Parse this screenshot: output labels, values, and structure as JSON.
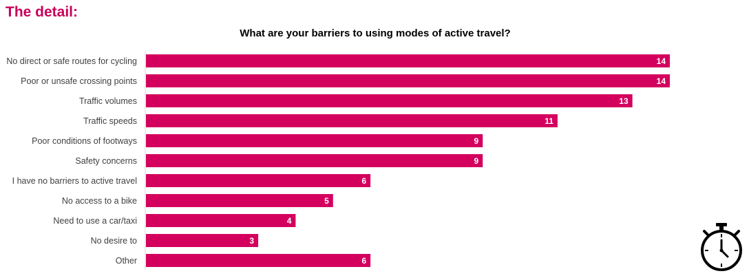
{
  "page": {
    "heading": "The detail:"
  },
  "colors": {
    "accent": "#d4005e",
    "heading": "#c8005a",
    "bar_label": "#ffffff",
    "category_label": "#404040"
  },
  "icons": {
    "stopwatch": "stopwatch-icon"
  },
  "chart_data": {
    "type": "bar",
    "orientation": "horizontal",
    "title": "What are your barriers to using modes of active travel?",
    "xlabel": "",
    "ylabel": "",
    "categories": [
      "No direct or safe routes for cycling",
      "Poor or unsafe crossing points",
      "Traffic volumes",
      "Traffic speeds",
      "Poor conditions of footways",
      "Safety concerns",
      "I have no barriers to active travel",
      "No access to a bike",
      "Need to use a car/taxi",
      "No desire to",
      "Other"
    ],
    "values": [
      14,
      14,
      13,
      11,
      9,
      9,
      6,
      5,
      4,
      3,
      6
    ],
    "xlim": [
      0,
      14
    ],
    "grid": false,
    "legend": "none",
    "data_labels": "inside-end"
  }
}
